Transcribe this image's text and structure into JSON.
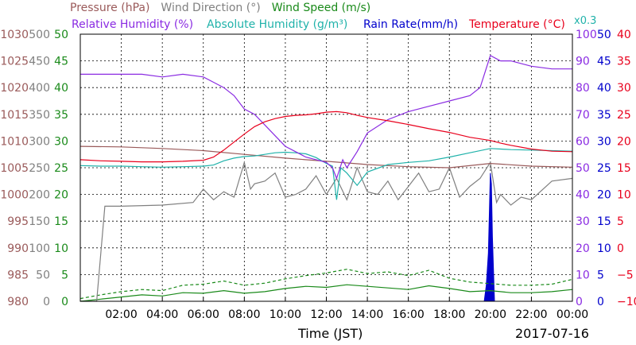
{
  "chart_data": {
    "type": "line",
    "xlabel": "Time (JST)",
    "date_label": "2017-07-16",
    "x_ticks": [
      "02:00",
      "04:00",
      "06:00",
      "08:00",
      "10:00",
      "12:00",
      "14:00",
      "16:00",
      "18:00",
      "20:00",
      "22:00",
      "00:00"
    ],
    "xlim": [
      0,
      24
    ],
    "grid": true,
    "legend": {
      "line1": [
        {
          "text": "Pressure (hPa)",
          "color": "#9a5a5a"
        },
        {
          "text": "Wind Direction (°)",
          "color": "#808080"
        },
        {
          "text": "Wind Speed (m/s)",
          "color": "#1a8a1a"
        }
      ],
      "line2": [
        {
          "text": "Relative Humidity (%)",
          "color": "#8a2be2"
        },
        {
          "text": "Absolute Humidity (g/m³)",
          "color": "#20b2aa"
        },
        {
          "text": "Rain Rate(mm/h)",
          "color": "#0000cc"
        },
        {
          "text": "Temperature (°C)",
          "color": "#e8001c"
        },
        {
          "text": "x0.3",
          "color": "#20b2aa"
        }
      ]
    },
    "axes": {
      "pressure": {
        "label_color": "#9a5a5a",
        "ticks": [
          "980",
          "985",
          "990",
          "995",
          "1000",
          "1005",
          "1010",
          "1015",
          "1020",
          "1025",
          "1030"
        ]
      },
      "wind_direction": {
        "label_color": "#808080",
        "ticks": [
          "0",
          "50",
          "100",
          "150",
          "200",
          "250",
          "300",
          "350",
          "400",
          "450",
          "500"
        ]
      },
      "wind_speed": {
        "label_color": "#1a8a1a",
        "ticks": [
          "0",
          "5",
          "10",
          "15",
          "20",
          "25",
          "30",
          "35",
          "40",
          "45",
          "50"
        ]
      },
      "humidity": {
        "label_color": "#8a2be2",
        "ticks": [
          "0",
          "10",
          "20",
          "30",
          "40",
          "50",
          "60",
          "70",
          "80",
          "90",
          "100"
        ]
      },
      "rain_rate": {
        "label_color": "#0000cc",
        "ticks": [
          "0",
          "5",
          "10",
          "15",
          "20",
          "25",
          "30",
          "35",
          "40",
          "45",
          "50"
        ]
      },
      "temperature": {
        "label_color": "#e8001c",
        "ticks": [
          "−10",
          "−5",
          "0",
          "5",
          "10",
          "15",
          "20",
          "25",
          "30",
          "35",
          "40"
        ]
      }
    },
    "series": [
      {
        "key": "temperature",
        "color": "#e8001c",
        "axis": "temperature",
        "ylim": [
          -10,
          40
        ],
        "x": [
          0,
          1,
          2,
          3,
          4,
          5,
          6,
          6.5,
          7,
          7.5,
          8,
          8.5,
          9,
          9.5,
          10,
          10.5,
          11,
          11.5,
          12,
          12.5,
          13,
          13.5,
          14,
          15,
          16,
          17,
          18,
          19,
          19.5,
          20,
          20.5,
          21,
          22,
          23,
          24
        ],
        "y": [
          16.5,
          16.3,
          16.2,
          16.1,
          16.1,
          16.2,
          16.4,
          17,
          18.3,
          19.8,
          21.3,
          22.7,
          23.6,
          24.2,
          24.6,
          24.8,
          24.9,
          25.1,
          25.4,
          25.5,
          25.3,
          24.8,
          24.4,
          23.8,
          23.1,
          22.3,
          21.6,
          20.7,
          20.4,
          20.1,
          19.6,
          19.2,
          18.5,
          18.1,
          18.0
        ]
      },
      {
        "key": "relative_humidity",
        "color": "#8a2be2",
        "axis": "humidity",
        "ylim": [
          0,
          100
        ],
        "x": [
          0,
          1,
          2,
          3,
          4,
          5,
          6,
          6.5,
          7,
          7.5,
          8,
          8.5,
          9,
          9.5,
          10,
          10.5,
          11,
          11.5,
          12,
          12.3,
          12.5,
          12.8,
          13,
          13.5,
          14,
          15,
          16,
          17,
          18,
          19,
          19.5,
          20,
          20.5,
          21,
          22,
          23,
          24
        ],
        "y": [
          85,
          85,
          85,
          85,
          84,
          85,
          84,
          82,
          80,
          77,
          72,
          70,
          66,
          62,
          58,
          56,
          54,
          53,
          52,
          50,
          46,
          53,
          50,
          56,
          63,
          68,
          71,
          73,
          75,
          77,
          80,
          92,
          90,
          90,
          88,
          87,
          87
        ]
      },
      {
        "key": "absolute_humidity",
        "color": "#20b2aa",
        "axis": "temperature",
        "ylim": [
          -10,
          40
        ],
        "x": [
          0,
          1,
          2,
          3,
          4,
          5,
          6,
          6.5,
          7,
          7.5,
          8,
          8.5,
          9,
          9.5,
          10,
          10.5,
          11,
          11.5,
          12,
          12.3,
          12.5,
          12.7,
          13,
          13.5,
          14,
          15,
          16,
          17,
          18,
          19,
          20,
          20.5,
          21,
          22,
          23,
          24
        ],
        "y": [
          15.4,
          15.3,
          15.3,
          15.2,
          15.1,
          15.2,
          15.3,
          15.5,
          16.3,
          16.8,
          17.1,
          17.2,
          17.5,
          17.8,
          17.9,
          17.8,
          17.6,
          16.9,
          15.8,
          15.3,
          9.0,
          15.0,
          14.0,
          11.7,
          14.2,
          15.6,
          16.0,
          16.3,
          17.0,
          17.8,
          18.6,
          18.5,
          18.4,
          18.3,
          18.2,
          18.1
        ]
      },
      {
        "key": "pressure",
        "color": "#9a5a5a",
        "axis": "pressure",
        "ylim": [
          980,
          1030
        ],
        "x": [
          0,
          2,
          4,
          6,
          8,
          10,
          12,
          14,
          16,
          18,
          20,
          22,
          24
        ],
        "y": [
          1009.0,
          1008.9,
          1008.6,
          1008.2,
          1007.5,
          1006.8,
          1006.2,
          1005.6,
          1005.2,
          1005.0,
          1005.8,
          1005.3,
          1005.1
        ]
      },
      {
        "key": "wind_direction",
        "color": "#808080",
        "axis": "wind_direction",
        "ylim": [
          0,
          500
        ],
        "x": [
          0,
          0.8,
          1.2,
          2,
          4,
          5.5,
          6,
          6.5,
          7,
          7.5,
          8,
          8.3,
          8.5,
          9,
          9.5,
          10,
          10.5,
          11,
          11.5,
          12,
          12.5,
          13,
          13.5,
          14,
          14.5,
          15,
          15.5,
          16,
          16.5,
          17,
          17.5,
          18,
          18.5,
          19,
          19.5,
          20,
          20.3,
          20.5,
          21,
          21.5,
          22,
          23,
          24
        ],
        "y": [
          0,
          0,
          178,
          178,
          180,
          185,
          210,
          190,
          205,
          195,
          260,
          210,
          220,
          225,
          240,
          195,
          200,
          210,
          235,
          200,
          230,
          190,
          250,
          205,
          200,
          225,
          190,
          215,
          240,
          205,
          210,
          250,
          195,
          215,
          230,
          260,
          185,
          200,
          180,
          195,
          190,
          225,
          230
        ]
      },
      {
        "key": "wind_speed_avg",
        "color": "#1a8a1a",
        "axis": "wind_speed",
        "ylim": [
          0,
          50
        ],
        "x": [
          0,
          1,
          2,
          3,
          4,
          5,
          6,
          7,
          8,
          9,
          10,
          11,
          12,
          13,
          14,
          15,
          16,
          17,
          18,
          19,
          20,
          21,
          22,
          23,
          24
        ],
        "y": [
          0,
          0.4,
          0.8,
          1.2,
          1.0,
          1.6,
          1.5,
          2.0,
          1.5,
          1.8,
          2.4,
          2.8,
          2.6,
          3.1,
          2.8,
          2.5,
          2.2,
          2.9,
          2.4,
          1.8,
          2.0,
          1.6,
          1.6,
          1.8,
          2.2
        ]
      },
      {
        "key": "wind_speed_gust",
        "color": "#1a8a1a",
        "axis": "wind_speed",
        "dashed": true,
        "ylim": [
          0,
          50
        ],
        "x": [
          0,
          1,
          2,
          3,
          4,
          5,
          6,
          7,
          8,
          9,
          10,
          11,
          12,
          13,
          14,
          15,
          16,
          17,
          18,
          19,
          20,
          21,
          22,
          23,
          24
        ],
        "y": [
          0.5,
          1.2,
          1.8,
          2.2,
          2.0,
          3.0,
          3.2,
          3.8,
          3.0,
          3.4,
          4.2,
          4.8,
          5.3,
          6.0,
          5.2,
          5.5,
          4.8,
          5.8,
          4.3,
          3.6,
          3.3,
          3.0,
          3.0,
          3.2,
          4.1
        ]
      },
      {
        "key": "rain_rate",
        "color": "#0000cc",
        "axis": "rain_rate",
        "fill": true,
        "ylim": [
          0,
          50
        ],
        "x": [
          0,
          19.7,
          19.8,
          19.9,
          20.0,
          20.05,
          20.1,
          20.2,
          24
        ],
        "y": [
          0,
          0,
          3,
          9,
          24,
          22,
          12,
          0,
          0
        ]
      }
    ]
  }
}
